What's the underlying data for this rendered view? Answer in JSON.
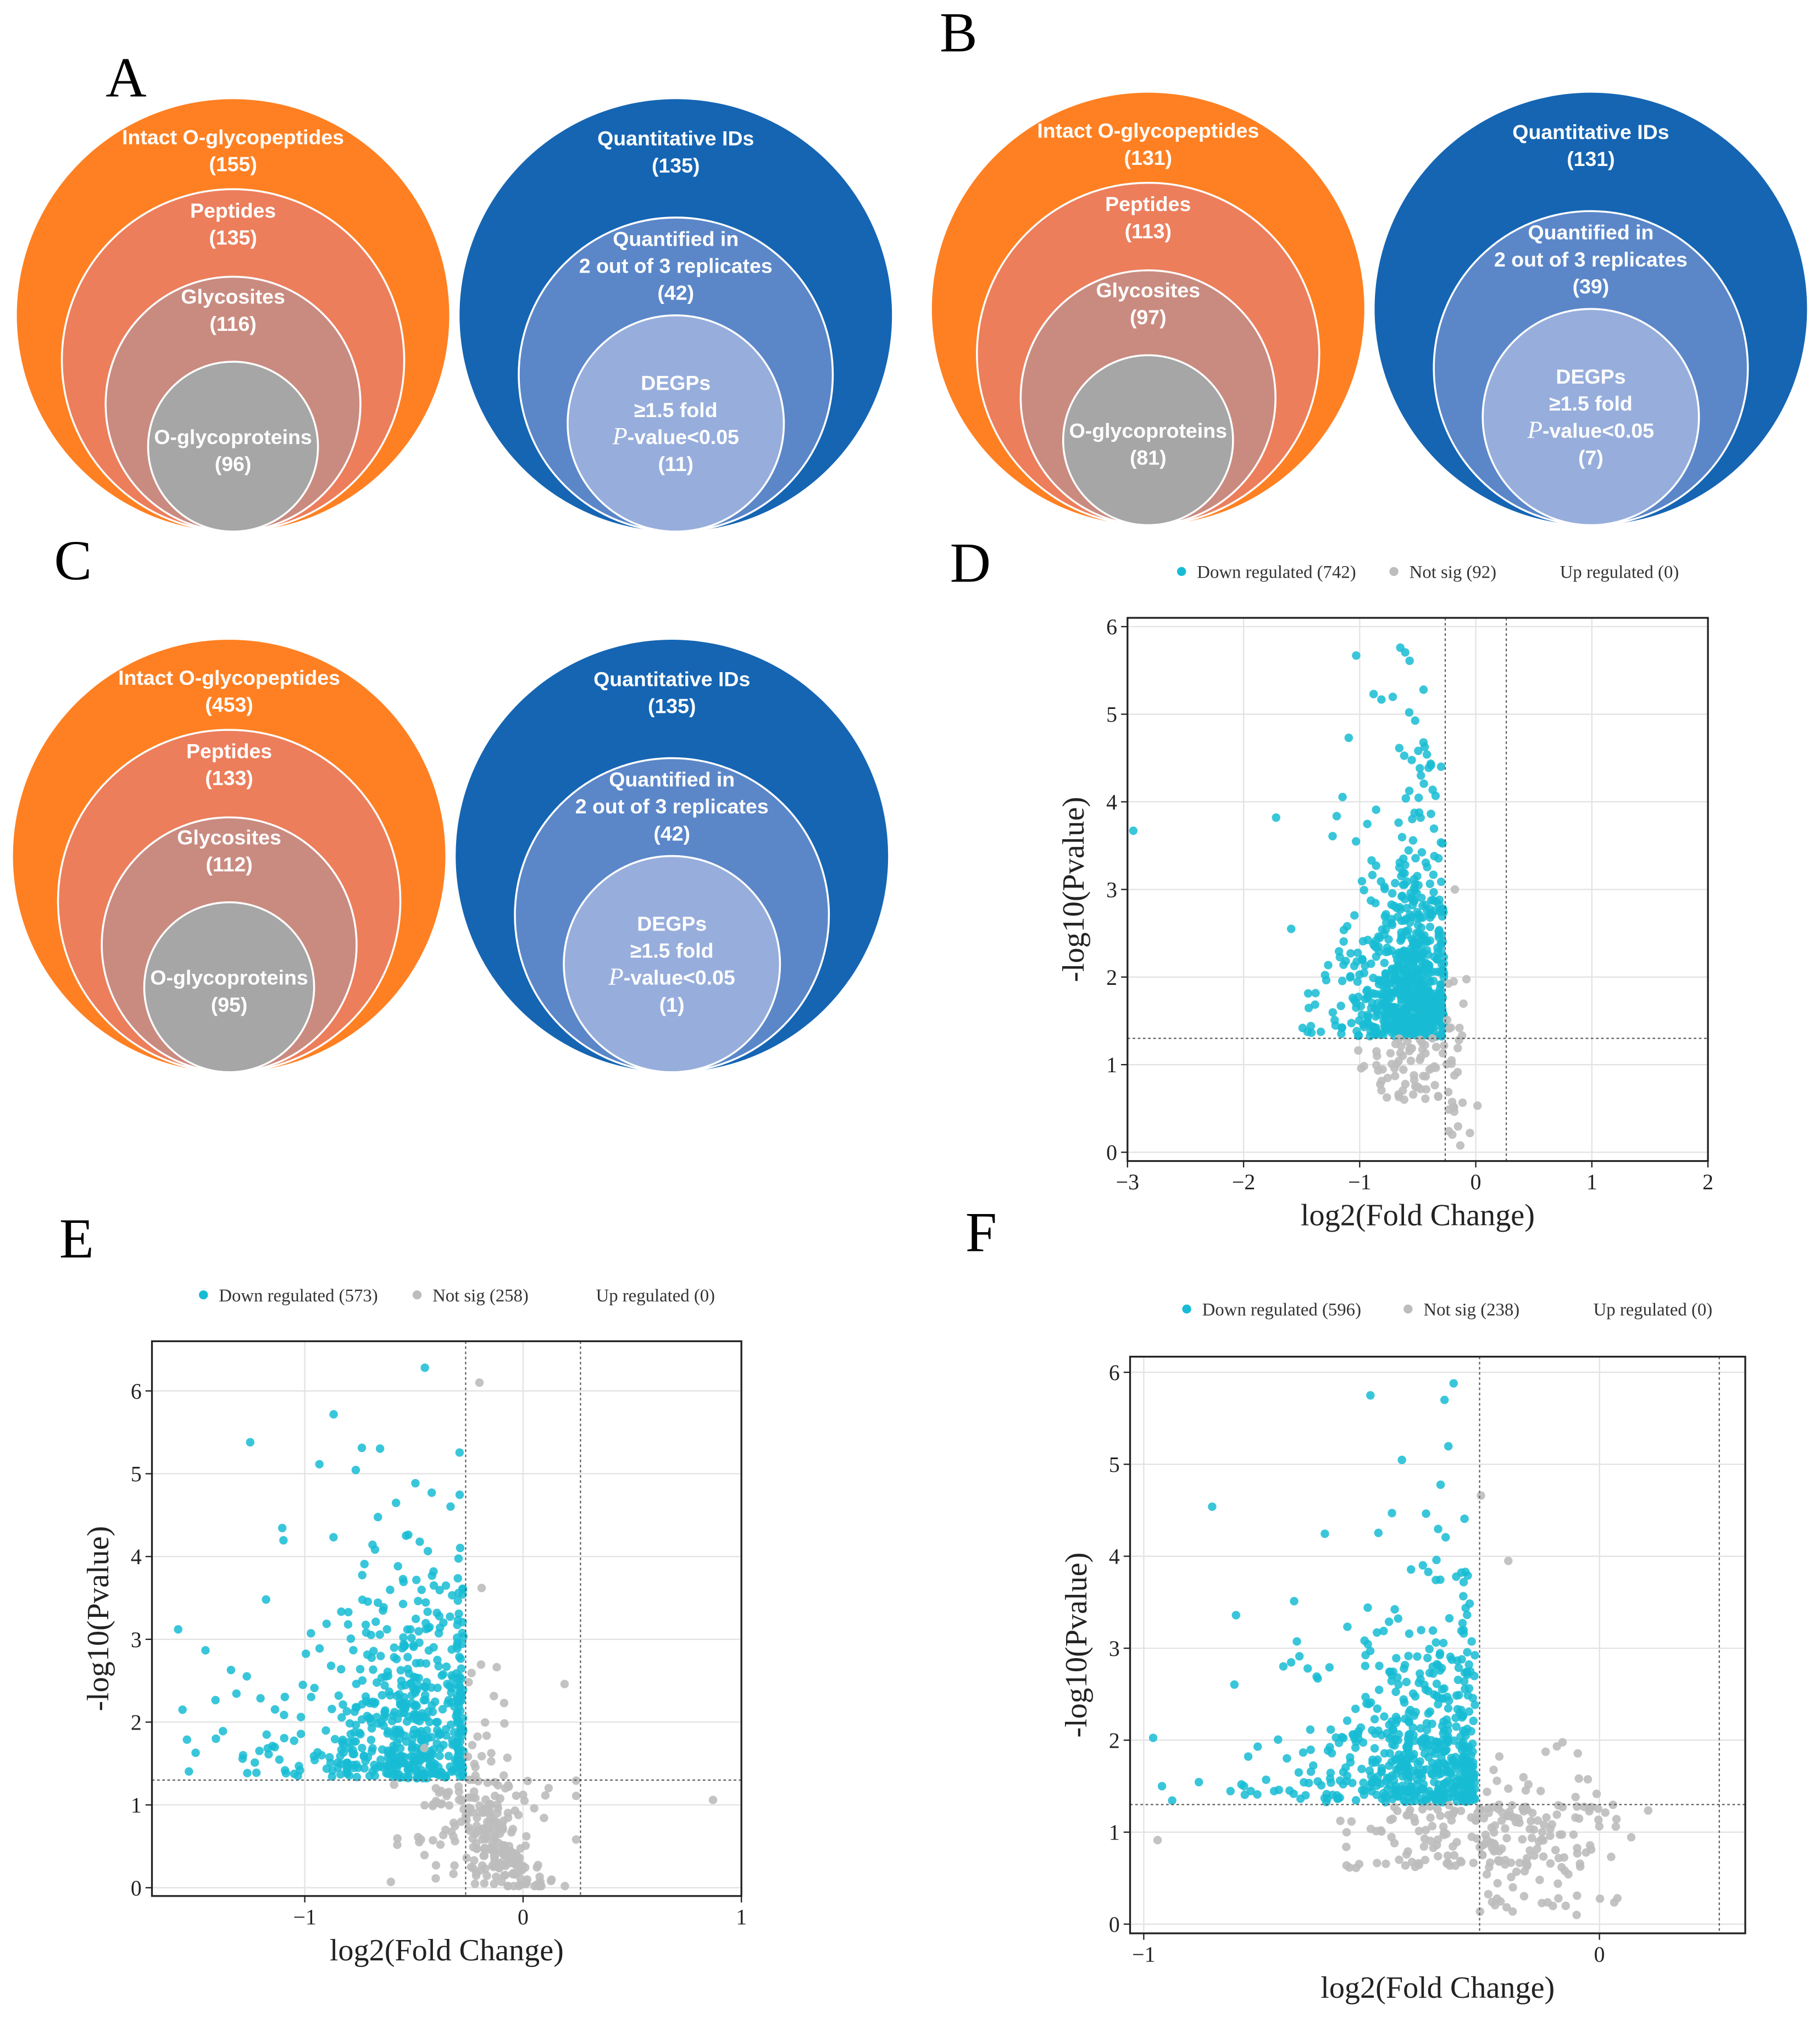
{
  "panel_labels": [
    "A",
    "B",
    "C",
    "D",
    "E",
    "F"
  ],
  "colors": {
    "intact": "#FF8022",
    "peptides": "#EC7E5C",
    "glycosites": "#C98B80",
    "glycoproteins": "#A6A6A6",
    "quant_outer": "#1565B3",
    "quant_mid": "#5B87C9",
    "quant_inner": "#97AEDC",
    "down": "#17BCD4",
    "notsig": "#BDBDBD"
  },
  "venn": [
    {
      "panel": "A",
      "orange": [
        [
          "Intact O-glycopeptides",
          "(155)"
        ],
        [
          "Peptides",
          "(135)"
        ],
        [
          "Glycosites",
          "(116)"
        ],
        [
          "O-glycoproteins",
          "(96)"
        ]
      ],
      "blue": [
        [
          "Quantitative IDs",
          "(135)"
        ],
        [
          "Quantified in",
          "2 out of 3 replicates",
          "(42)"
        ],
        [
          "DEGPs",
          "≥1.5 fold",
          "P",
          "-value<0.05",
          "(11)"
        ]
      ]
    },
    {
      "panel": "B",
      "orange": [
        [
          "Intact O-glycopeptides",
          "(131)"
        ],
        [
          "Peptides",
          "(113)"
        ],
        [
          "Glycosites",
          "(97)"
        ],
        [
          "O-glycoproteins",
          "(81)"
        ]
      ],
      "blue": [
        [
          "Quantitative IDs",
          "(131)"
        ],
        [
          "Quantified in",
          "2 out of 3 replicates",
          "(39)"
        ],
        [
          "DEGPs",
          "≥1.5 fold",
          "P",
          "-value<0.05",
          "(7)"
        ]
      ]
    },
    {
      "panel": "C",
      "orange": [
        [
          "Intact O-glycopeptides",
          "(453)"
        ],
        [
          "Peptides",
          "(133)"
        ],
        [
          "Glycosites",
          "(112)"
        ],
        [
          "O-glycoproteins",
          "(95)"
        ]
      ],
      "blue": [
        [
          "Quantitative IDs",
          "(135)"
        ],
        [
          "Quantified in",
          "2 out of 3 replicates",
          "(42)"
        ],
        [
          "DEGPs",
          "≥1.5 fold",
          "P",
          "-value<0.05",
          "(1)"
        ]
      ]
    }
  ],
  "chart_data": [
    {
      "panel": "D",
      "type": "scatter",
      "legend": [
        "Down regulated (742)",
        "Not sig (92)",
        "Up regulated (0)"
      ],
      "legend_placement": "top",
      "counts": {
        "down": 742,
        "notsig": 92,
        "up": 0
      },
      "xlabel": "log2(Fold Change)",
      "ylabel": "-log10(Pvalue)",
      "xlim": [
        -3,
        2
      ],
      "ylim": [
        -0.1,
        6.1
      ],
      "xticks": [
        "−3",
        "−2",
        "−1",
        "0",
        "1",
        "2"
      ],
      "xtick_values": [
        -3,
        -2,
        -1,
        0,
        1,
        2
      ],
      "yticks": [
        "0",
        "1",
        "2",
        "3",
        "4",
        "5",
        "6"
      ],
      "ytick_values": [
        0,
        1,
        2,
        3,
        4,
        5,
        6
      ],
      "thresholds": {
        "x": [
          -0.263,
          0.263
        ],
        "y": 1.3
      },
      "notable_points": [
        [
          -2.95,
          3.67
        ],
        [
          -1.72,
          3.82
        ],
        [
          -1.59,
          2.55
        ],
        [
          -1.03,
          5.67
        ],
        [
          -0.65,
          5.76
        ],
        [
          -0.57,
          5.61
        ],
        [
          -0.88,
          5.23
        ],
        [
          -0.45,
          5.28
        ],
        [
          -0.05,
          0.22
        ],
        [
          -0.18,
          3.0
        ]
      ]
    },
    {
      "panel": "E",
      "type": "scatter",
      "legend": [
        "Down regulated (573)",
        "Not sig (258)",
        "Up regulated (0)"
      ],
      "legend_placement": "top",
      "counts": {
        "down": 573,
        "notsig": 258,
        "up": 0
      },
      "xlabel": "log2(Fold Change)",
      "ylabel": "-log10(Pvalue)",
      "xlim": [
        -1.7,
        1
      ],
      "ylim": [
        -0.1,
        6.6
      ],
      "xticks": [
        "−1",
        "0",
        "1"
      ],
      "xtick_values": [
        -1,
        0,
        1
      ],
      "yticks": [
        "0",
        "1",
        "2",
        "3",
        "4",
        "5",
        "6"
      ],
      "ytick_values": [
        0,
        1,
        2,
        3,
        4,
        5,
        6
      ],
      "thresholds": {
        "x": [
          -0.263,
          0.263
        ],
        "y": 1.3
      },
      "notable_points": [
        [
          -1.58,
          3.12
        ],
        [
          -1.56,
          2.15
        ],
        [
          -1.5,
          1.63
        ],
        [
          -1.25,
          5.38
        ],
        [
          -0.45,
          6.28
        ],
        [
          -0.2,
          6.1
        ],
        [
          0.87,
          1.06
        ],
        [
          -0.19,
          3.62
        ],
        [
          0.19,
          2.46
        ]
      ]
    },
    {
      "panel": "F",
      "type": "scatter",
      "legend": [
        "Down regulated (596)",
        "Not sig (238)",
        "Up regulated (0)"
      ],
      "legend_placement": "top",
      "counts": {
        "down": 596,
        "notsig": 238,
        "up": 0
      },
      "xlabel": "log2(Fold Change)",
      "ylabel": "-log10(Pvalue)",
      "xlim": [
        -1.03,
        0.32
      ],
      "ylim": [
        -0.1,
        6.17
      ],
      "xticks": [
        "−1",
        "0"
      ],
      "xtick_values": [
        -1,
        0
      ],
      "yticks": [
        "0",
        "1",
        "2",
        "3",
        "4",
        "5",
        "6"
      ],
      "ytick_values": [
        0,
        1,
        2,
        3,
        4,
        5,
        6
      ],
      "thresholds": {
        "x": [
          -0.263,
          0.263
        ],
        "y": 1.3
      },
      "notable_points": [
        [
          -0.96,
          1.5
        ],
        [
          -0.78,
          1.5
        ],
        [
          -0.75,
          1.93
        ],
        [
          -0.32,
          5.88
        ],
        [
          -0.34,
          5.7
        ],
        [
          -0.26,
          4.66
        ],
        [
          -0.05,
          0.1
        ],
        [
          -0.2,
          3.95
        ]
      ]
    }
  ]
}
